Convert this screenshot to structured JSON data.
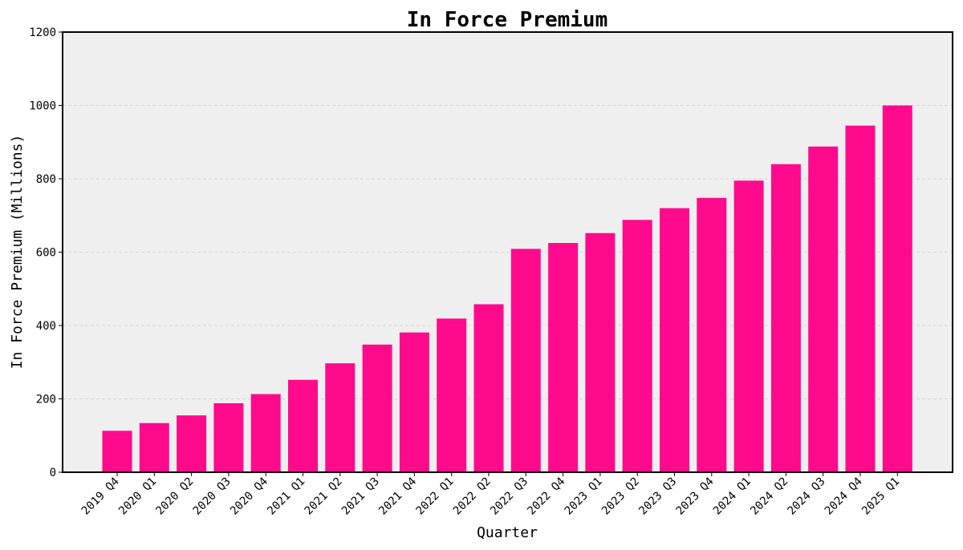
{
  "chart_data": {
    "type": "bar",
    "title": "In Force Premium",
    "xlabel": "Quarter",
    "ylabel": "In Force Premium (Millions)",
    "categories": [
      "2019 Q4",
      "2020 Q1",
      "2020 Q2",
      "2020 Q3",
      "2020 Q4",
      "2021 Q1",
      "2021 Q2",
      "2021 Q3",
      "2021 Q4",
      "2022 Q1",
      "2022 Q2",
      "2022 Q3",
      "2022 Q4",
      "2023 Q1",
      "2023 Q2",
      "2023 Q3",
      "2023 Q4",
      "2024 Q1",
      "2024 Q2",
      "2024 Q3",
      "2024 Q4",
      "2025 Q1"
    ],
    "values": [
      113,
      134,
      155,
      188,
      213,
      252,
      297,
      348,
      381,
      419,
      458,
      609,
      625,
      652,
      688,
      720,
      748,
      795,
      840,
      888,
      945,
      1000
    ],
    "ylim": [
      0,
      1200
    ],
    "yticks": [
      0,
      200,
      400,
      600,
      800,
      1000,
      1200
    ],
    "grid": true,
    "bar_color": "#ff0a8d",
    "plot_background": "#efefef"
  }
}
